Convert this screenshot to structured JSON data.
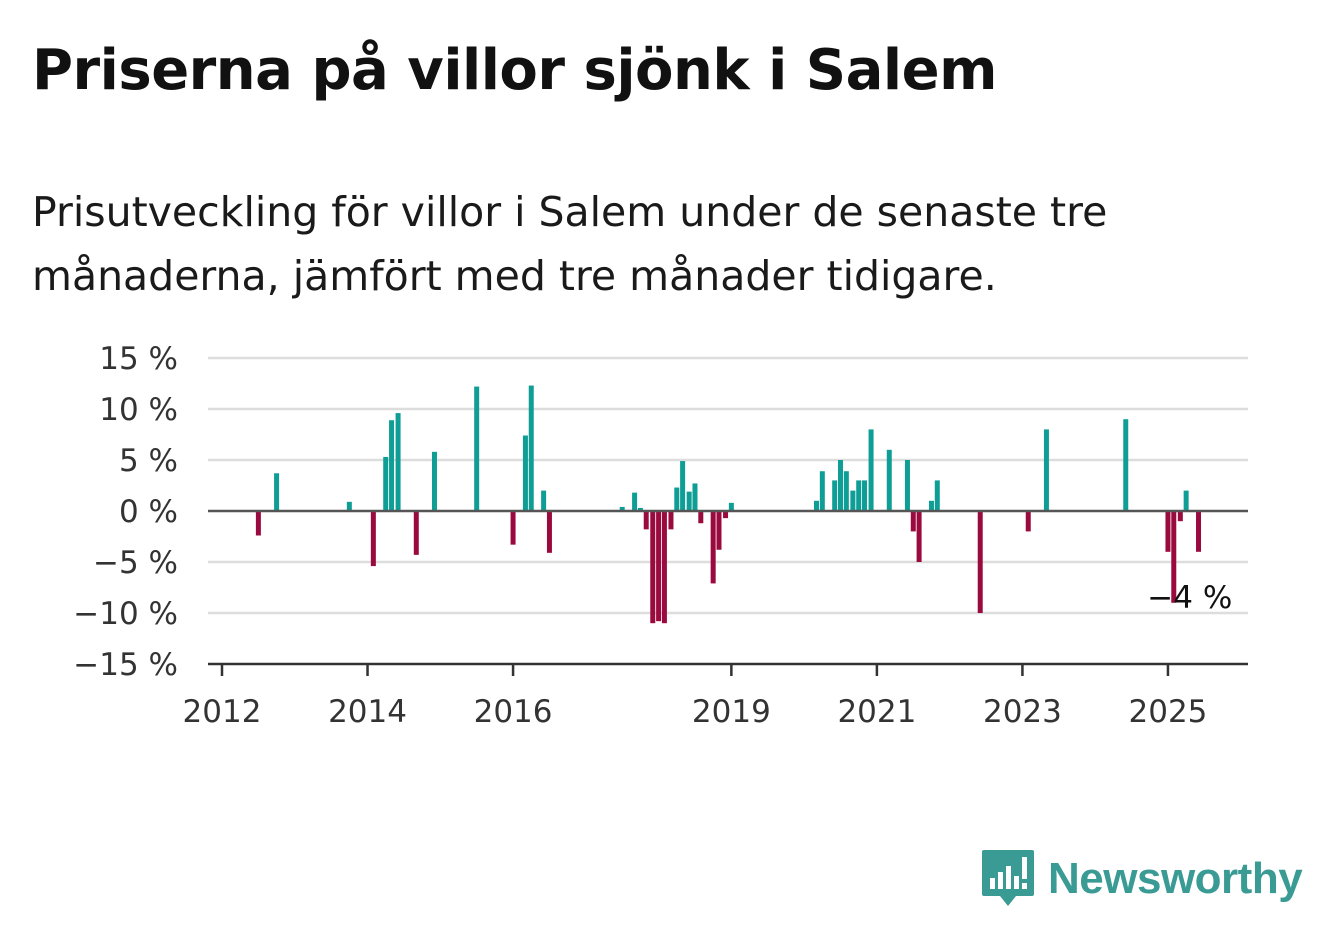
{
  "title": "Priserna på villor sjönk i Salem",
  "subtitle": "Prisutveckling för villor i Salem under de senaste tre månaderna, jämfört med tre månader tidigare.",
  "brand": {
    "name": "Newsworthy",
    "color": "#3a9b95",
    "icon": "newsworthy-chart-bubble-icon"
  },
  "colors": {
    "positive": "#0f9e96",
    "negative": "#9b0a3e",
    "grid": "#dddddd",
    "zero": "#555555"
  },
  "chart_data": {
    "type": "bar",
    "ylim": [
      -15,
      15
    ],
    "yticks": [
      15,
      10,
      5,
      0,
      -5,
      -10,
      -15
    ],
    "ytick_labels": [
      "15 %",
      "10 %",
      "5 %",
      "0 %",
      "−5 %",
      "−10 %",
      "−15 %"
    ],
    "xlim": [
      2012.0,
      2026.1
    ],
    "xticks": [
      2012,
      2014,
      2016,
      2019,
      2021,
      2023,
      2025
    ],
    "xtick_labels": [
      "2012",
      "2014",
      "2016",
      "2019",
      "2021",
      "2023",
      "2025"
    ],
    "grid": true,
    "annotations": [
      {
        "x": 2025.3,
        "y": -4,
        "label": "−4 %"
      }
    ],
    "points": [
      {
        "x": 2012.5,
        "y": -2.4
      },
      {
        "x": 2012.75,
        "y": 3.7
      },
      {
        "x": 2013.75,
        "y": 0.9
      },
      {
        "x": 2014.08,
        "y": -5.4
      },
      {
        "x": 2014.25,
        "y": 5.3
      },
      {
        "x": 2014.33,
        "y": 8.9
      },
      {
        "x": 2014.42,
        "y": 9.6
      },
      {
        "x": 2014.67,
        "y": -4.3
      },
      {
        "x": 2014.92,
        "y": 5.8
      },
      {
        "x": 2015.5,
        "y": 12.2
      },
      {
        "x": 2016.0,
        "y": -3.3
      },
      {
        "x": 2016.17,
        "y": 7.4
      },
      {
        "x": 2016.25,
        "y": 12.3
      },
      {
        "x": 2016.42,
        "y": 2.0
      },
      {
        "x": 2016.5,
        "y": -4.1
      },
      {
        "x": 2017.5,
        "y": 0.4
      },
      {
        "x": 2017.67,
        "y": 1.8
      },
      {
        "x": 2017.75,
        "y": 0.3
      },
      {
        "x": 2017.83,
        "y": -1.8
      },
      {
        "x": 2017.92,
        "y": -11.0
      },
      {
        "x": 2018.0,
        "y": -10.8
      },
      {
        "x": 2018.08,
        "y": -11.0
      },
      {
        "x": 2018.17,
        "y": -1.8
      },
      {
        "x": 2018.25,
        "y": 2.3
      },
      {
        "x": 2018.33,
        "y": 4.9
      },
      {
        "x": 2018.42,
        "y": 1.9
      },
      {
        "x": 2018.5,
        "y": 2.7
      },
      {
        "x": 2018.58,
        "y": -1.2
      },
      {
        "x": 2018.75,
        "y": -7.1
      },
      {
        "x": 2018.83,
        "y": -3.8
      },
      {
        "x": 2018.92,
        "y": -0.7
      },
      {
        "x": 2019.0,
        "y": 0.8
      },
      {
        "x": 2020.17,
        "y": 1.0
      },
      {
        "x": 2020.25,
        "y": 3.9
      },
      {
        "x": 2020.42,
        "y": 3.0
      },
      {
        "x": 2020.5,
        "y": 5.0
      },
      {
        "x": 2020.58,
        "y": 3.9
      },
      {
        "x": 2020.67,
        "y": 2.0
      },
      {
        "x": 2020.75,
        "y": 3.0
      },
      {
        "x": 2020.83,
        "y": 3.0
      },
      {
        "x": 2020.92,
        "y": 8.0
      },
      {
        "x": 2021.17,
        "y": 6.0
      },
      {
        "x": 2021.42,
        "y": 5.0
      },
      {
        "x": 2021.5,
        "y": -2.0
      },
      {
        "x": 2021.58,
        "y": -5.0
      },
      {
        "x": 2021.75,
        "y": 1.0
      },
      {
        "x": 2021.83,
        "y": 3.0
      },
      {
        "x": 2022.42,
        "y": -10.0
      },
      {
        "x": 2023.08,
        "y": -2.0
      },
      {
        "x": 2023.33,
        "y": 8.0
      },
      {
        "x": 2024.42,
        "y": 9.0
      },
      {
        "x": 2025.0,
        "y": -4.0
      },
      {
        "x": 2025.08,
        "y": -9.0
      },
      {
        "x": 2025.17,
        "y": -1.0
      },
      {
        "x": 2025.25,
        "y": 2.0
      },
      {
        "x": 2025.42,
        "y": -4.0
      }
    ]
  }
}
